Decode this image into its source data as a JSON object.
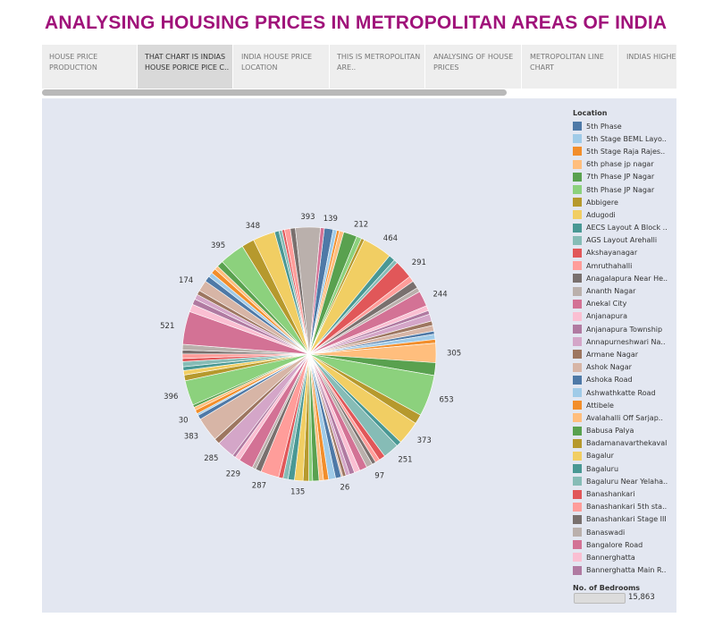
{
  "title": "ANALYSING HOUSING PRICES IN METROPOLITAN AREAS OF INDIA",
  "tabs": [
    {
      "label": "HOUSE PRICE PRODUCTION",
      "active": false
    },
    {
      "label": "THAT CHART IS INDIAS HOUSE PORICE PICE C..",
      "active": true
    },
    {
      "label": "INDIA HOUSE PRICE LOCATION",
      "active": false
    },
    {
      "label": "THIS IS METROPOLITAN ARE..",
      "active": false
    },
    {
      "label": "ANALYSING OF HOUSE PRICES",
      "active": false
    },
    {
      "label": "METROPOLITAN LINE CHART",
      "active": false
    },
    {
      "label": "INDIAS HIGHEST PO..",
      "active": false
    }
  ],
  "legend": {
    "title": "Location",
    "items": [
      {
        "label": "5th Phase",
        "color": "#4e79a7"
      },
      {
        "label": "5th Stage BEML Layo..",
        "color": "#a0cbe8"
      },
      {
        "label": "5th Stage Raja Rajes..",
        "color": "#f28e2b"
      },
      {
        "label": "6th phase jp nagar",
        "color": "#ffbe7d"
      },
      {
        "label": "7th Phase JP Nagar",
        "color": "#59a14f"
      },
      {
        "label": "8th Phase JP Nagar",
        "color": "#8cd17d"
      },
      {
        "label": "Abbigere",
        "color": "#b6992d"
      },
      {
        "label": "Adugodi",
        "color": "#f1ce63"
      },
      {
        "label": "AECS Layout A Block ..",
        "color": "#499894"
      },
      {
        "label": "AGS Layout Arehalli",
        "color": "#86bcb6"
      },
      {
        "label": "Akshayanagar",
        "color": "#e15759"
      },
      {
        "label": "Amruthahalli",
        "color": "#ff9d9a"
      },
      {
        "label": "Anagalapura Near He..",
        "color": "#79706e"
      },
      {
        "label": "Ananth Nagar",
        "color": "#bab0ac"
      },
      {
        "label": "Anekal City",
        "color": "#d37295"
      },
      {
        "label": "Anjanapura",
        "color": "#fabfd2"
      },
      {
        "label": "Anjanapura Township",
        "color": "#b07aa1"
      },
      {
        "label": "Annapurneshwari Na..",
        "color": "#d4a6c8"
      },
      {
        "label": "Armane Nagar",
        "color": "#9d7660"
      },
      {
        "label": "Ashok Nagar",
        "color": "#d7b5a6"
      },
      {
        "label": "Ashoka Road",
        "color": "#4e79a7"
      },
      {
        "label": "Ashwathkatte Road",
        "color": "#a0cbe8"
      },
      {
        "label": "Attibele",
        "color": "#f28e2b"
      },
      {
        "label": "Avalahalli Off Sarjap..",
        "color": "#ffbe7d"
      },
      {
        "label": "Babusa Palya",
        "color": "#59a14f"
      },
      {
        "label": "Badamanavarthekaval",
        "color": "#b6992d"
      },
      {
        "label": "Bagalur",
        "color": "#f1ce63"
      },
      {
        "label": "Bagaluru",
        "color": "#499894"
      },
      {
        "label": "Bagaluru Near Yelaha..",
        "color": "#86bcb6"
      },
      {
        "label": "Banashankari",
        "color": "#e15759"
      },
      {
        "label": "Banashankari 5th sta..",
        "color": "#ff9d9a"
      },
      {
        "label": "Banashankari Stage III",
        "color": "#79706e"
      },
      {
        "label": "Banaswadi",
        "color": "#bab0ac"
      },
      {
        "label": "Bangalore Road",
        "color": "#d37295"
      },
      {
        "label": "Bannerghatta",
        "color": "#fabfd2"
      },
      {
        "label": "Bannerghatta Main R..",
        "color": "#b07aa1"
      }
    ]
  },
  "size_legend": {
    "title": "No. of Bedrooms",
    "value": "15,863"
  },
  "chart_data": {
    "type": "pie",
    "palette": [
      "#4e79a7",
      "#a0cbe8",
      "#f28e2b",
      "#ffbe7d",
      "#59a14f",
      "#8cd17d",
      "#b6992d",
      "#f1ce63",
      "#499894",
      "#86bcb6",
      "#e15759",
      "#ff9d9a",
      "#79706e",
      "#bab0ac",
      "#d37295",
      "#fabfd2",
      "#b07aa1",
      "#d4a6c8",
      "#9d7660",
      "#d7b5a6"
    ],
    "slices": [
      {
        "value": 139,
        "label": "139"
      },
      {
        "value": 60
      },
      {
        "value": 40
      },
      {
        "value": 70
      },
      {
        "value": 212,
        "label": "212"
      },
      {
        "value": 80
      },
      {
        "value": 50
      },
      {
        "value": 464,
        "label": "464"
      },
      {
        "value": 100
      },
      {
        "value": 60
      },
      {
        "value": 291,
        "label": "291"
      },
      {
        "value": 90
      },
      {
        "value": 120
      },
      {
        "value": 70
      },
      {
        "value": 244,
        "label": "244"
      },
      {
        "value": 80
      },
      {
        "value": 60
      },
      {
        "value": 110
      },
      {
        "value": 70
      },
      {
        "value": 90
      },
      {
        "value": 50
      },
      {
        "value": 80
      },
      {
        "value": 60
      },
      {
        "value": 305,
        "label": "305"
      },
      {
        "value": 200
      },
      {
        "value": 653,
        "label": "653"
      },
      {
        "value": 150
      },
      {
        "value": 373,
        "label": "373"
      },
      {
        "value": 80
      },
      {
        "value": 251,
        "label": "251"
      },
      {
        "value": 100
      },
      {
        "value": 70
      },
      {
        "value": 60
      },
      {
        "value": 97,
        "label": "97"
      },
      {
        "value": 120
      },
      {
        "value": 90
      },
      {
        "value": 80
      },
      {
        "value": 60
      },
      {
        "value": 50
      },
      {
        "value": 26,
        "label": "26"
      },
      {
        "value": 90
      },
      {
        "value": 110
      },
      {
        "value": 80
      },
      {
        "value": 70
      },
      {
        "value": 100
      },
      {
        "value": 60
      },
      {
        "value": 90
      },
      {
        "value": 135,
        "label": "135"
      },
      {
        "value": 100
      },
      {
        "value": 80
      },
      {
        "value": 70
      },
      {
        "value": 287,
        "label": "287"
      },
      {
        "value": 90
      },
      {
        "value": 60
      },
      {
        "value": 229,
        "label": "229"
      },
      {
        "value": 80
      },
      {
        "value": 50
      },
      {
        "value": 285,
        "label": "285"
      },
      {
        "value": 90
      },
      {
        "value": 383,
        "label": "383"
      },
      {
        "value": 70
      },
      {
        "value": 30,
        "label": "30"
      },
      {
        "value": 60
      },
      {
        "value": 50
      },
      {
        "value": 40
      },
      {
        "value": 396,
        "label": "396"
      },
      {
        "value": 90
      },
      {
        "value": 70
      },
      {
        "value": 60
      },
      {
        "value": 80
      },
      {
        "value": 50
      },
      {
        "value": 70
      },
      {
        "value": 60
      },
      {
        "value": 90
      },
      {
        "value": 521,
        "label": "521"
      },
      {
        "value": 120
      },
      {
        "value": 90
      },
      {
        "value": 80
      },
      {
        "value": 70
      },
      {
        "value": 174,
        "label": "174"
      },
      {
        "value": 90
      },
      {
        "value": 70
      },
      {
        "value": 80
      },
      {
        "value": 60
      },
      {
        "value": 100
      },
      {
        "value": 395,
        "label": "395"
      },
      {
        "value": 200
      },
      {
        "value": 348,
        "label": "348"
      },
      {
        "value": 70
      },
      {
        "value": 50
      },
      {
        "value": 40
      },
      {
        "value": 90
      },
      {
        "value": 80
      },
      {
        "value": 393,
        "label": "393"
      },
      {
        "value": 60
      }
    ]
  }
}
